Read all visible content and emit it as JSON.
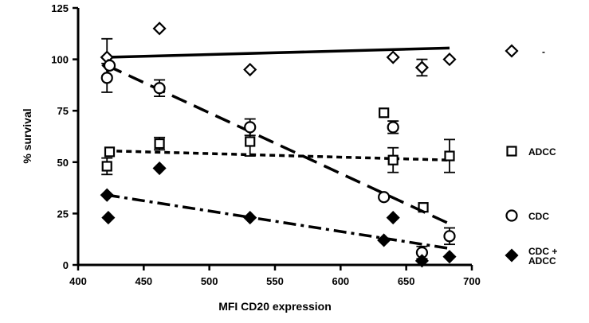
{
  "chart_data": {
    "type": "scatter",
    "xlabel": "MFI CD20 expression",
    "ylabel": "% survival",
    "xlim": [
      400,
      700
    ],
    "ylim": [
      0,
      125
    ],
    "xticks": [
      400,
      450,
      500,
      550,
      600,
      650,
      700
    ],
    "yticks": [
      0,
      25,
      50,
      75,
      100,
      125
    ],
    "grid": false,
    "legend_position": "right",
    "series": [
      {
        "name": "-",
        "marker": "diamond-open",
        "line": "solid",
        "points": [
          {
            "x": 422,
            "y": 101,
            "err": 9
          },
          {
            "x": 423,
            "y": 97
          },
          {
            "x": 462,
            "y": 115
          },
          {
            "x": 531,
            "y": 95
          },
          {
            "x": 640,
            "y": 101
          },
          {
            "x": 662,
            "y": 96,
            "err": 4
          },
          {
            "x": 683,
            "y": 100
          }
        ],
        "fit": [
          [
            422,
            101
          ],
          [
            683,
            105.5
          ]
        ]
      },
      {
        "name": "ADCC",
        "marker": "square-open",
        "line": "dotted",
        "points": [
          {
            "x": 422,
            "y": 48,
            "err": 4
          },
          {
            "x": 424,
            "y": 55
          },
          {
            "x": 462,
            "y": 59,
            "err": 3
          },
          {
            "x": 531,
            "y": 60,
            "err": 7
          },
          {
            "x": 633,
            "y": 74
          },
          {
            "x": 640,
            "y": 51,
            "err": 6
          },
          {
            "x": 663,
            "y": 28
          },
          {
            "x": 683,
            "y": 53,
            "err": 8
          }
        ],
        "fit": [
          [
            422,
            55.5
          ],
          [
            683,
            51
          ]
        ]
      },
      {
        "name": "CDC",
        "marker": "circle-open",
        "line": "dashed",
        "points": [
          {
            "x": 422,
            "y": 91,
            "err": 7
          },
          {
            "x": 424,
            "y": 97
          },
          {
            "x": 462,
            "y": 86,
            "err": 4
          },
          {
            "x": 531,
            "y": 67,
            "err": 4
          },
          {
            "x": 633,
            "y": 33
          },
          {
            "x": 640,
            "y": 67,
            "err": 3
          },
          {
            "x": 662,
            "y": 6,
            "err": 3
          },
          {
            "x": 683,
            "y": 14,
            "err": 4
          }
        ],
        "fit": [
          [
            422,
            97
          ],
          [
            683,
            20
          ]
        ]
      },
      {
        "name": "CDC + ADCC",
        "marker": "diamond-filled",
        "line": "dashdot",
        "points": [
          {
            "x": 422,
            "y": 34
          },
          {
            "x": 423,
            "y": 23
          },
          {
            "x": 462,
            "y": 47
          },
          {
            "x": 531,
            "y": 23
          },
          {
            "x": 633,
            "y": 12
          },
          {
            "x": 640,
            "y": 23
          },
          {
            "x": 662,
            "y": 2
          },
          {
            "x": 683,
            "y": 4
          }
        ],
        "fit": [
          [
            422,
            34
          ],
          [
            683,
            8
          ]
        ]
      }
    ],
    "legend": [
      {
        "label": "-",
        "marker": "diamond-open"
      },
      {
        "label": "ADCC",
        "marker": "square-open"
      },
      {
        "label": "CDC",
        "marker": "circle-open"
      },
      {
        "label": "CDC +\nADCC",
        "marker": "diamond-filled"
      }
    ]
  }
}
